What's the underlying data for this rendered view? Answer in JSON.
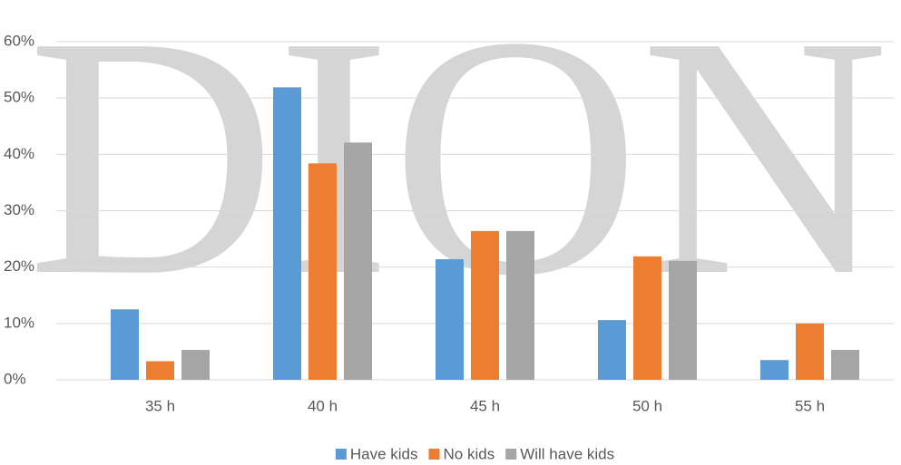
{
  "chart_data": {
    "type": "bar",
    "watermark": "DION",
    "categories": [
      "35 h",
      "40 h",
      "45 h",
      "50 h",
      "55 h"
    ],
    "series": [
      {
        "name": "Have kids",
        "color": "#5b9bd5",
        "values": [
          12.5,
          51.9,
          21.4,
          10.6,
          3.5
        ]
      },
      {
        "name": "No kids",
        "color": "#ed7d31",
        "values": [
          3.3,
          38.4,
          26.4,
          21.9,
          10.0
        ]
      },
      {
        "name": "Will have kids",
        "color": "#a5a5a5",
        "values": [
          5.3,
          42.1,
          26.4,
          21.1,
          5.3
        ]
      }
    ],
    "ylim": [
      0,
      60
    ],
    "yticks": [
      {
        "value": 0,
        "label": "0%"
      },
      {
        "value": 10,
        "label": "10%"
      },
      {
        "value": 20,
        "label": "20%"
      },
      {
        "value": 30,
        "label": "30%"
      },
      {
        "value": 40,
        "label": "40%"
      },
      {
        "value": 50,
        "label": "50%"
      },
      {
        "value": 60,
        "label": "60%"
      }
    ],
    "grid": true,
    "legend": "bottom"
  }
}
